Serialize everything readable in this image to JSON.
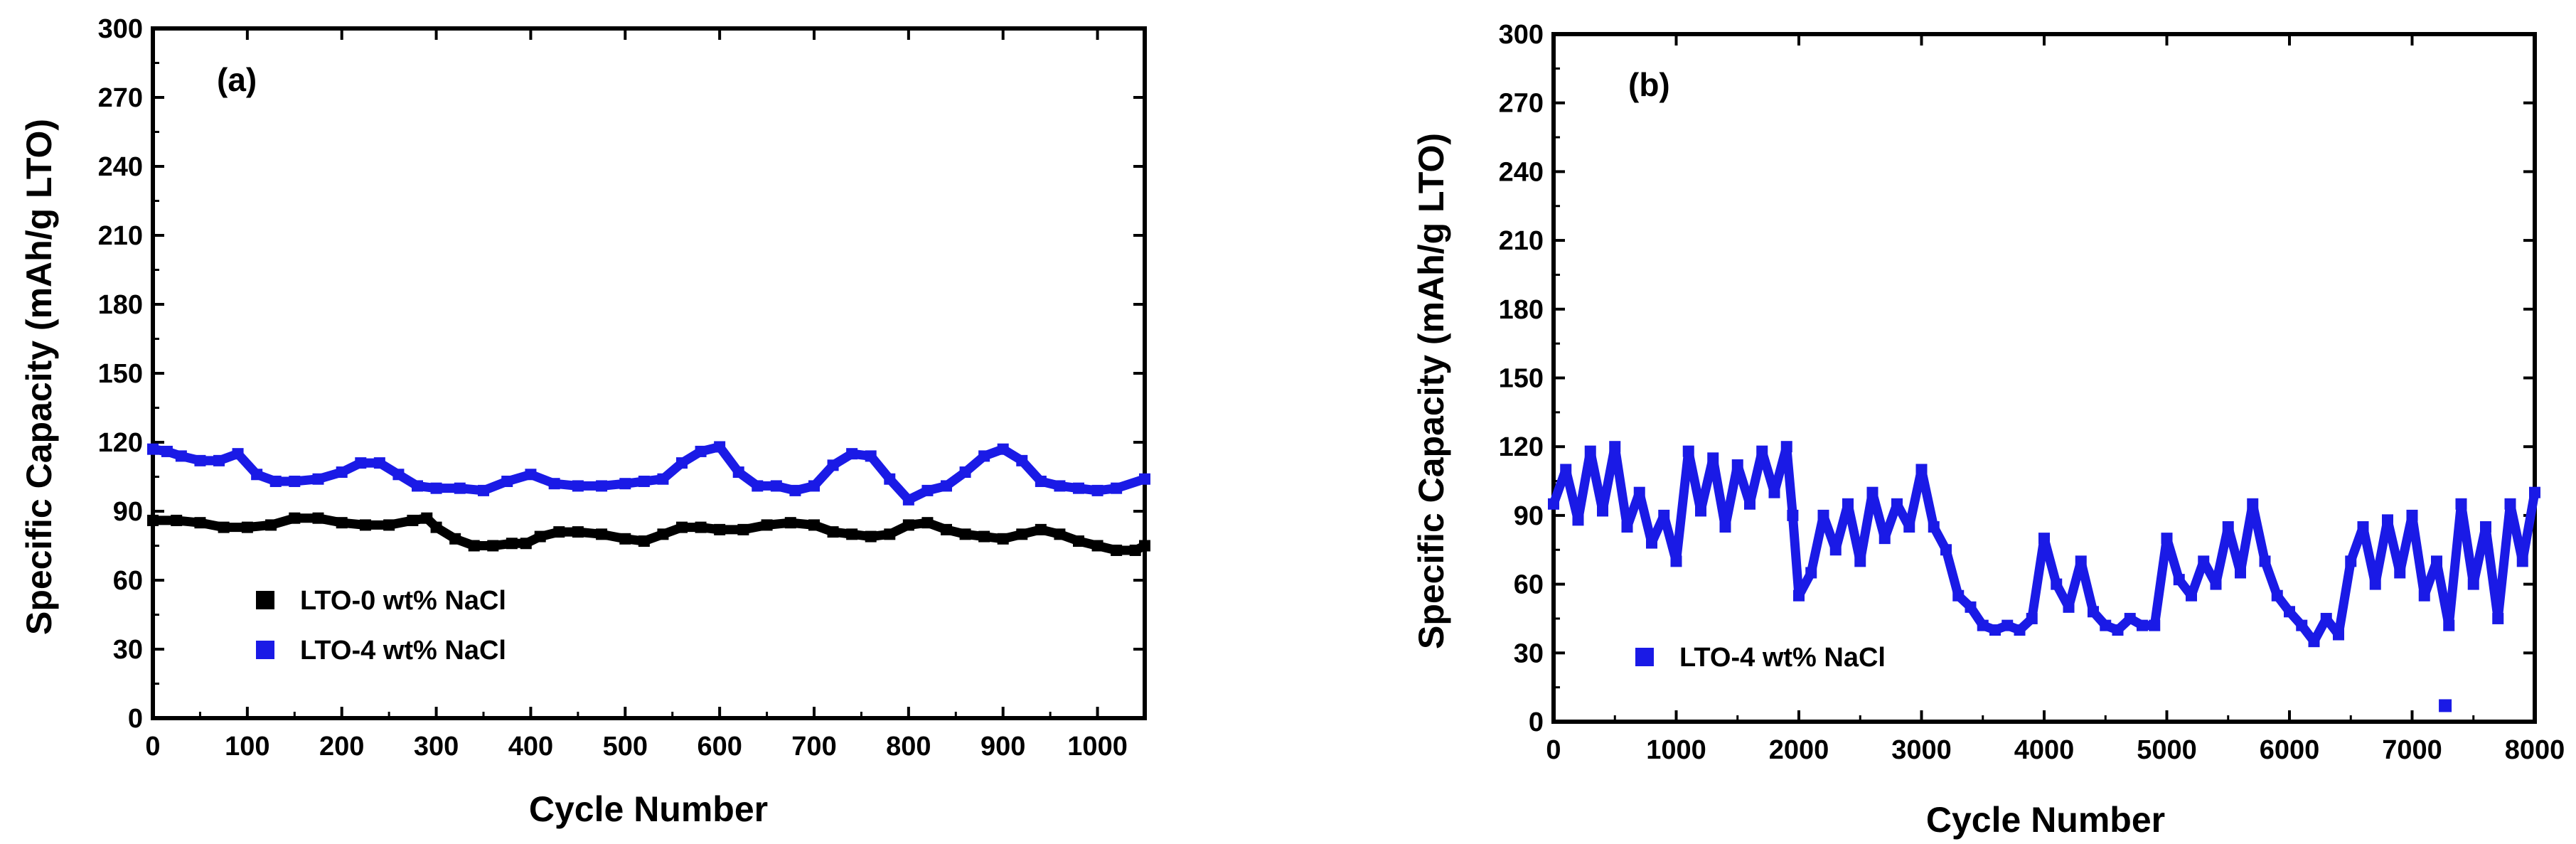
{
  "chart_data": [
    {
      "type": "line",
      "panel_label": "(a)",
      "title": "",
      "xlabel": "Cycle Number",
      "ylabel": "Specific Capacity (mAh/g LTO)",
      "xlim": [
        0,
        1050
      ],
      "ylim": [
        0,
        300
      ],
      "x_ticks": [
        0,
        100,
        200,
        300,
        400,
        500,
        600,
        700,
        800,
        900,
        1000
      ],
      "y_ticks": [
        0,
        30,
        60,
        90,
        120,
        150,
        180,
        210,
        240,
        270,
        300
      ],
      "grid": false,
      "legend_position": "lower-left",
      "series": [
        {
          "name": "LTO-0 wt% NaCl",
          "color": "#000000",
          "marker": "square",
          "x": [
            0,
            25,
            50,
            75,
            100,
            125,
            150,
            175,
            200,
            225,
            250,
            275,
            290,
            300,
            320,
            340,
            360,
            380,
            395,
            410,
            430,
            450,
            475,
            500,
            520,
            540,
            560,
            580,
            600,
            625,
            650,
            675,
            700,
            720,
            740,
            760,
            780,
            800,
            820,
            840,
            860,
            880,
            900,
            920,
            940,
            960,
            980,
            1000,
            1020,
            1040,
            1050
          ],
          "values": [
            86,
            86,
            85,
            83,
            83,
            84,
            87,
            87,
            85,
            84,
            84,
            86,
            87,
            83,
            78,
            75,
            75,
            76,
            76,
            79,
            81,
            81,
            80,
            78,
            77,
            80,
            83,
            83,
            82,
            82,
            84,
            85,
            84,
            81,
            80,
            79,
            80,
            84,
            85,
            82,
            80,
            79,
            78,
            80,
            82,
            80,
            77,
            75,
            73,
            73,
            75
          ]
        },
        {
          "name": "LTO-4 wt% NaCl",
          "color": "#1a1ae6",
          "marker": "square",
          "x": [
            0,
            15,
            30,
            50,
            70,
            90,
            110,
            130,
            150,
            175,
            200,
            220,
            240,
            260,
            280,
            300,
            325,
            350,
            375,
            400,
            425,
            450,
            475,
            500,
            520,
            540,
            560,
            580,
            600,
            620,
            640,
            660,
            680,
            700,
            720,
            740,
            760,
            780,
            800,
            820,
            840,
            860,
            880,
            900,
            920,
            940,
            960,
            980,
            1000,
            1020,
            1050
          ],
          "values": [
            117,
            116,
            114,
            112,
            112,
            115,
            106,
            103,
            103,
            104,
            107,
            111,
            111,
            106,
            101,
            100,
            100,
            99,
            103,
            106,
            102,
            101,
            101,
            102,
            103,
            104,
            111,
            116,
            118,
            107,
            101,
            101,
            99,
            101,
            110,
            115,
            114,
            104,
            95,
            99,
            101,
            107,
            114,
            117,
            112,
            103,
            101,
            100,
            99,
            100,
            104
          ]
        }
      ]
    },
    {
      "type": "line",
      "panel_label": "(b)",
      "title": "",
      "xlabel": "Cycle Number",
      "ylabel": "Specific Capacity (mAh/g LTO)",
      "xlim": [
        0,
        8000
      ],
      "ylim": [
        0,
        300
      ],
      "x_ticks": [
        0,
        1000,
        2000,
        3000,
        4000,
        5000,
        6000,
        7000,
        8000
      ],
      "y_ticks": [
        0,
        30,
        60,
        90,
        120,
        150,
        180,
        210,
        240,
        270,
        300
      ],
      "grid": false,
      "legend_position": "lower-left",
      "series": [
        {
          "name": "LTO-4 wt% NaCl",
          "color": "#1a1ae6",
          "marker": "square",
          "x": [
            0,
            100,
            200,
            300,
            400,
            500,
            600,
            700,
            800,
            900,
            1000,
            1100,
            1200,
            1300,
            1400,
            1500,
            1600,
            1700,
            1800,
            1900,
            1950,
            2000,
            2100,
            2200,
            2300,
            2400,
            2500,
            2600,
            2700,
            2800,
            2900,
            3000,
            3100,
            3200,
            3300,
            3400,
            3500,
            3600,
            3700,
            3800,
            3900,
            4000,
            4100,
            4200,
            4300,
            4400,
            4500,
            4600,
            4700,
            4800,
            4900,
            5000,
            5100,
            5200,
            5300,
            5400,
            5500,
            5600,
            5700,
            5800,
            5900,
            6000,
            6100,
            6200,
            6300,
            6400,
            6500,
            6600,
            6700,
            6800,
            6900,
            7000,
            7100,
            7200,
            7300,
            7400,
            7500,
            7600,
            7700,
            7800,
            7900,
            8000
          ],
          "values": [
            95,
            110,
            88,
            118,
            92,
            120,
            85,
            100,
            78,
            90,
            70,
            118,
            92,
            115,
            85,
            112,
            95,
            118,
            100,
            120,
            90,
            55,
            65,
            90,
            75,
            95,
            70,
            100,
            80,
            95,
            85,
            110,
            85,
            75,
            55,
            50,
            42,
            40,
            42,
            40,
            45,
            80,
            60,
            50,
            70,
            48,
            42,
            40,
            45,
            42,
            42,
            80,
            62,
            55,
            70,
            60,
            85,
            65,
            95,
            70,
            55,
            48,
            42,
            35,
            45,
            38,
            70,
            85,
            60,
            88,
            65,
            90,
            55,
            70,
            42,
            95,
            60,
            85,
            45,
            95,
            70,
            100
          ],
          "outlier": {
            "x": 7270,
            "y": 7
          }
        }
      ]
    }
  ]
}
